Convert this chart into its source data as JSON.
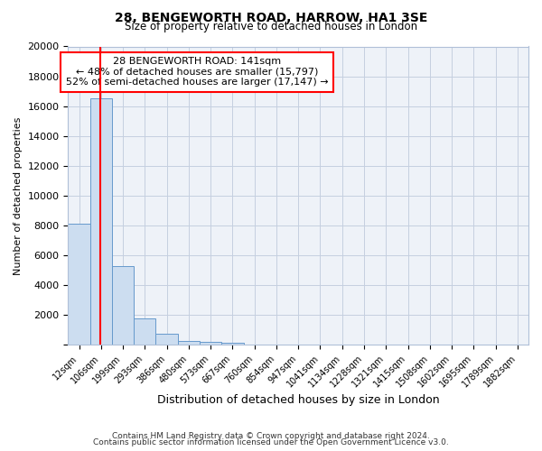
{
  "title": "28, BENGEWORTH ROAD, HARROW, HA1 3SE",
  "subtitle": "Size of property relative to detached houses in London",
  "xlabel": "Distribution of detached houses by size in London",
  "ylabel": "Number of detached properties",
  "bar_labels": [
    "12sqm",
    "106sqm",
    "199sqm",
    "293sqm",
    "386sqm",
    "480sqm",
    "573sqm",
    "667sqm",
    "760sqm",
    "854sqm",
    "947sqm",
    "1041sqm",
    "1134sqm",
    "1228sqm",
    "1321sqm",
    "1415sqm",
    "1508sqm",
    "1602sqm",
    "1695sqm",
    "1789sqm",
    "1882sqm"
  ],
  "bar_values": [
    8100,
    16550,
    5300,
    1800,
    750,
    300,
    200,
    150,
    0,
    0,
    0,
    0,
    0,
    0,
    0,
    0,
    0,
    0,
    0,
    0,
    0
  ],
  "bar_color": "#ccddf0",
  "bar_edge_color": "#6699cc",
  "ylim": [
    0,
    20000
  ],
  "yticks": [
    0,
    2000,
    4000,
    6000,
    8000,
    10000,
    12000,
    14000,
    16000,
    18000,
    20000
  ],
  "red_line_x": 0.97,
  "annotation_line1": "28 BENGEWORTH ROAD: 141sqm",
  "annotation_line2": "← 48% of detached houses are smaller (15,797)",
  "annotation_line3": "52% of semi-detached houses are larger (17,147) →",
  "footer1": "Contains HM Land Registry data © Crown copyright and database right 2024.",
  "footer2": "Contains public sector information licensed under the Open Government Licence v3.0.",
  "bg_color": "#eef2f8",
  "grid_color": "#c5cfe0"
}
